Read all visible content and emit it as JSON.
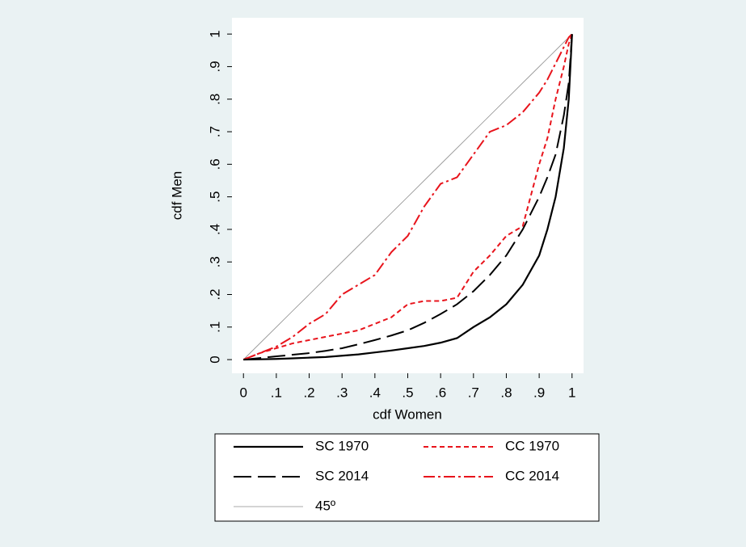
{
  "chart_data": {
    "type": "line",
    "x_label": "cdf Women",
    "y_label": "cdf Men",
    "x": [
      0,
      0.05,
      0.1,
      0.15,
      0.2,
      0.25,
      0.3,
      0.35,
      0.4,
      0.45,
      0.5,
      0.55,
      0.6,
      0.65,
      0.7,
      0.75,
      0.8,
      0.85,
      0.9,
      0.925,
      0.95,
      0.975,
      0.99,
      1
    ],
    "series": [
      {
        "name": "SC 1970",
        "color": "#000000",
        "dash": "solid",
        "width": 2.2,
        "values": [
          0,
          0.001,
          0.002,
          0.004,
          0.006,
          0.008,
          0.012,
          0.016,
          0.022,
          0.028,
          0.035,
          0.042,
          0.052,
          0.066,
          0.1,
          0.13,
          0.17,
          0.23,
          0.32,
          0.4,
          0.5,
          0.65,
          0.8,
          1
        ]
      },
      {
        "name": "SC 2014",
        "color": "#000000",
        "dash": "long",
        "width": 2,
        "values": [
          0,
          0.005,
          0.01,
          0.015,
          0.02,
          0.027,
          0.035,
          0.047,
          0.06,
          0.074,
          0.09,
          0.113,
          0.14,
          0.17,
          0.21,
          0.26,
          0.32,
          0.4,
          0.5,
          0.56,
          0.63,
          0.75,
          0.85,
          1
        ]
      },
      {
        "name": "CC 1970",
        "color": "#e8141c",
        "dash": "short",
        "width": 2,
        "values": [
          0,
          0.02,
          0.035,
          0.05,
          0.06,
          0.07,
          0.08,
          0.09,
          0.11,
          0.13,
          0.17,
          0.18,
          0.18,
          0.19,
          0.27,
          0.32,
          0.38,
          0.41,
          0.6,
          0.68,
          0.8,
          0.9,
          0.97,
          1
        ]
      },
      {
        "name": "CC 2014",
        "color": "#e8141c",
        "dash": "dashdot",
        "width": 2,
        "values": [
          0,
          0.02,
          0.04,
          0.07,
          0.11,
          0.14,
          0.2,
          0.23,
          0.26,
          0.33,
          0.38,
          0.47,
          0.54,
          0.56,
          0.63,
          0.7,
          0.72,
          0.76,
          0.82,
          0.86,
          0.91,
          0.96,
          0.99,
          1
        ]
      },
      {
        "name": "45º",
        "color": "#8c8c8c",
        "dash": "solid",
        "width": 0.8,
        "values": [
          0,
          0.05,
          0.1,
          0.15,
          0.2,
          0.25,
          0.3,
          0.35,
          0.4,
          0.45,
          0.5,
          0.55,
          0.6,
          0.65,
          0.7,
          0.75,
          0.8,
          0.85,
          0.9,
          0.925,
          0.95,
          0.975,
          0.99,
          1
        ]
      }
    ],
    "xlim": [
      -0.035,
      1.035
    ],
    "ylim": [
      -0.042,
      1.05
    ],
    "xticks": [
      0,
      {
        "value": 0.1,
        "label": ".1"
      },
      {
        "value": 0.2,
        "label": ".2"
      },
      {
        "value": 0.3,
        "label": ".3"
      },
      {
        "value": 0.4,
        "label": ".4"
      },
      {
        "value": 0.5,
        "label": ".5"
      },
      {
        "value": 0.6,
        "label": ".6"
      },
      {
        "value": 0.7,
        "label": ".7"
      },
      {
        "value": 0.8,
        "label": ".8"
      },
      {
        "value": 0.9,
        "label": ".9"
      },
      1
    ],
    "yticks": [
      0,
      {
        "value": 0.1,
        "label": ".1"
      },
      {
        "value": 0.2,
        "label": ".2"
      },
      {
        "value": 0.3,
        "label": ".3"
      },
      {
        "value": 0.4,
        "label": ".4"
      },
      {
        "value": 0.5,
        "label": ".5"
      },
      {
        "value": 0.6,
        "label": ".6"
      },
      {
        "value": 0.7,
        "label": ".7"
      },
      {
        "value": 0.8,
        "label": ".8"
      },
      {
        "value": 0.9,
        "label": ".9"
      },
      1
    ],
    "grid": false,
    "legend": "bottom"
  }
}
